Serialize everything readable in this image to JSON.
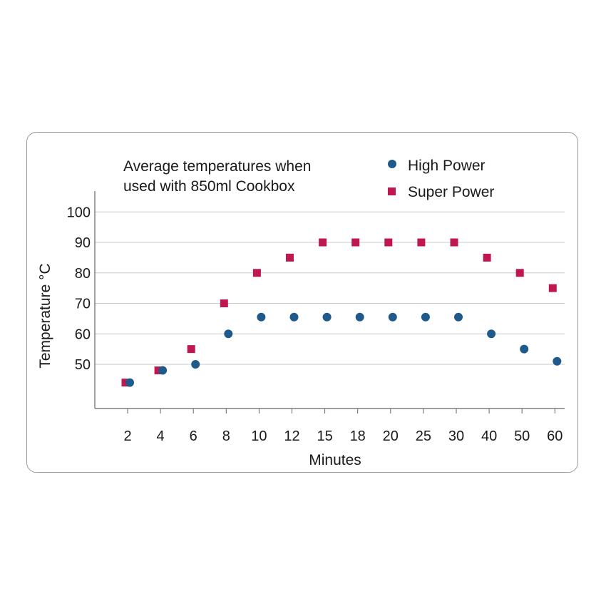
{
  "chart_data": {
    "type": "scatter",
    "title_lines": [
      "Average temperatures when",
      "used with 850ml Cookbox"
    ],
    "xlabel": "Minutes",
    "ylabel": "Temperature °C",
    "categories": [
      "2",
      "4",
      "6",
      "8",
      "10",
      "12",
      "15",
      "18",
      "20",
      "25",
      "30",
      "40",
      "50",
      "60"
    ],
    "y_ticks": [
      50,
      60,
      70,
      80,
      90,
      100
    ],
    "ylim": [
      38,
      100
    ],
    "grid": true,
    "legend_position": "top-right",
    "series": [
      {
        "name": "High Power",
        "marker": "circle",
        "color": "#1f5a8c",
        "values": [
          44,
          48,
          50,
          60,
          65.5,
          65.5,
          65.5,
          65.5,
          65.5,
          65.5,
          65.5,
          60,
          55,
          51
        ]
      },
      {
        "name": "Super Power",
        "marker": "square",
        "color": "#c0174f",
        "values": [
          44,
          48,
          55,
          70,
          80,
          85,
          90,
          90,
          90,
          90,
          90,
          85,
          80,
          75
        ]
      }
    ]
  }
}
